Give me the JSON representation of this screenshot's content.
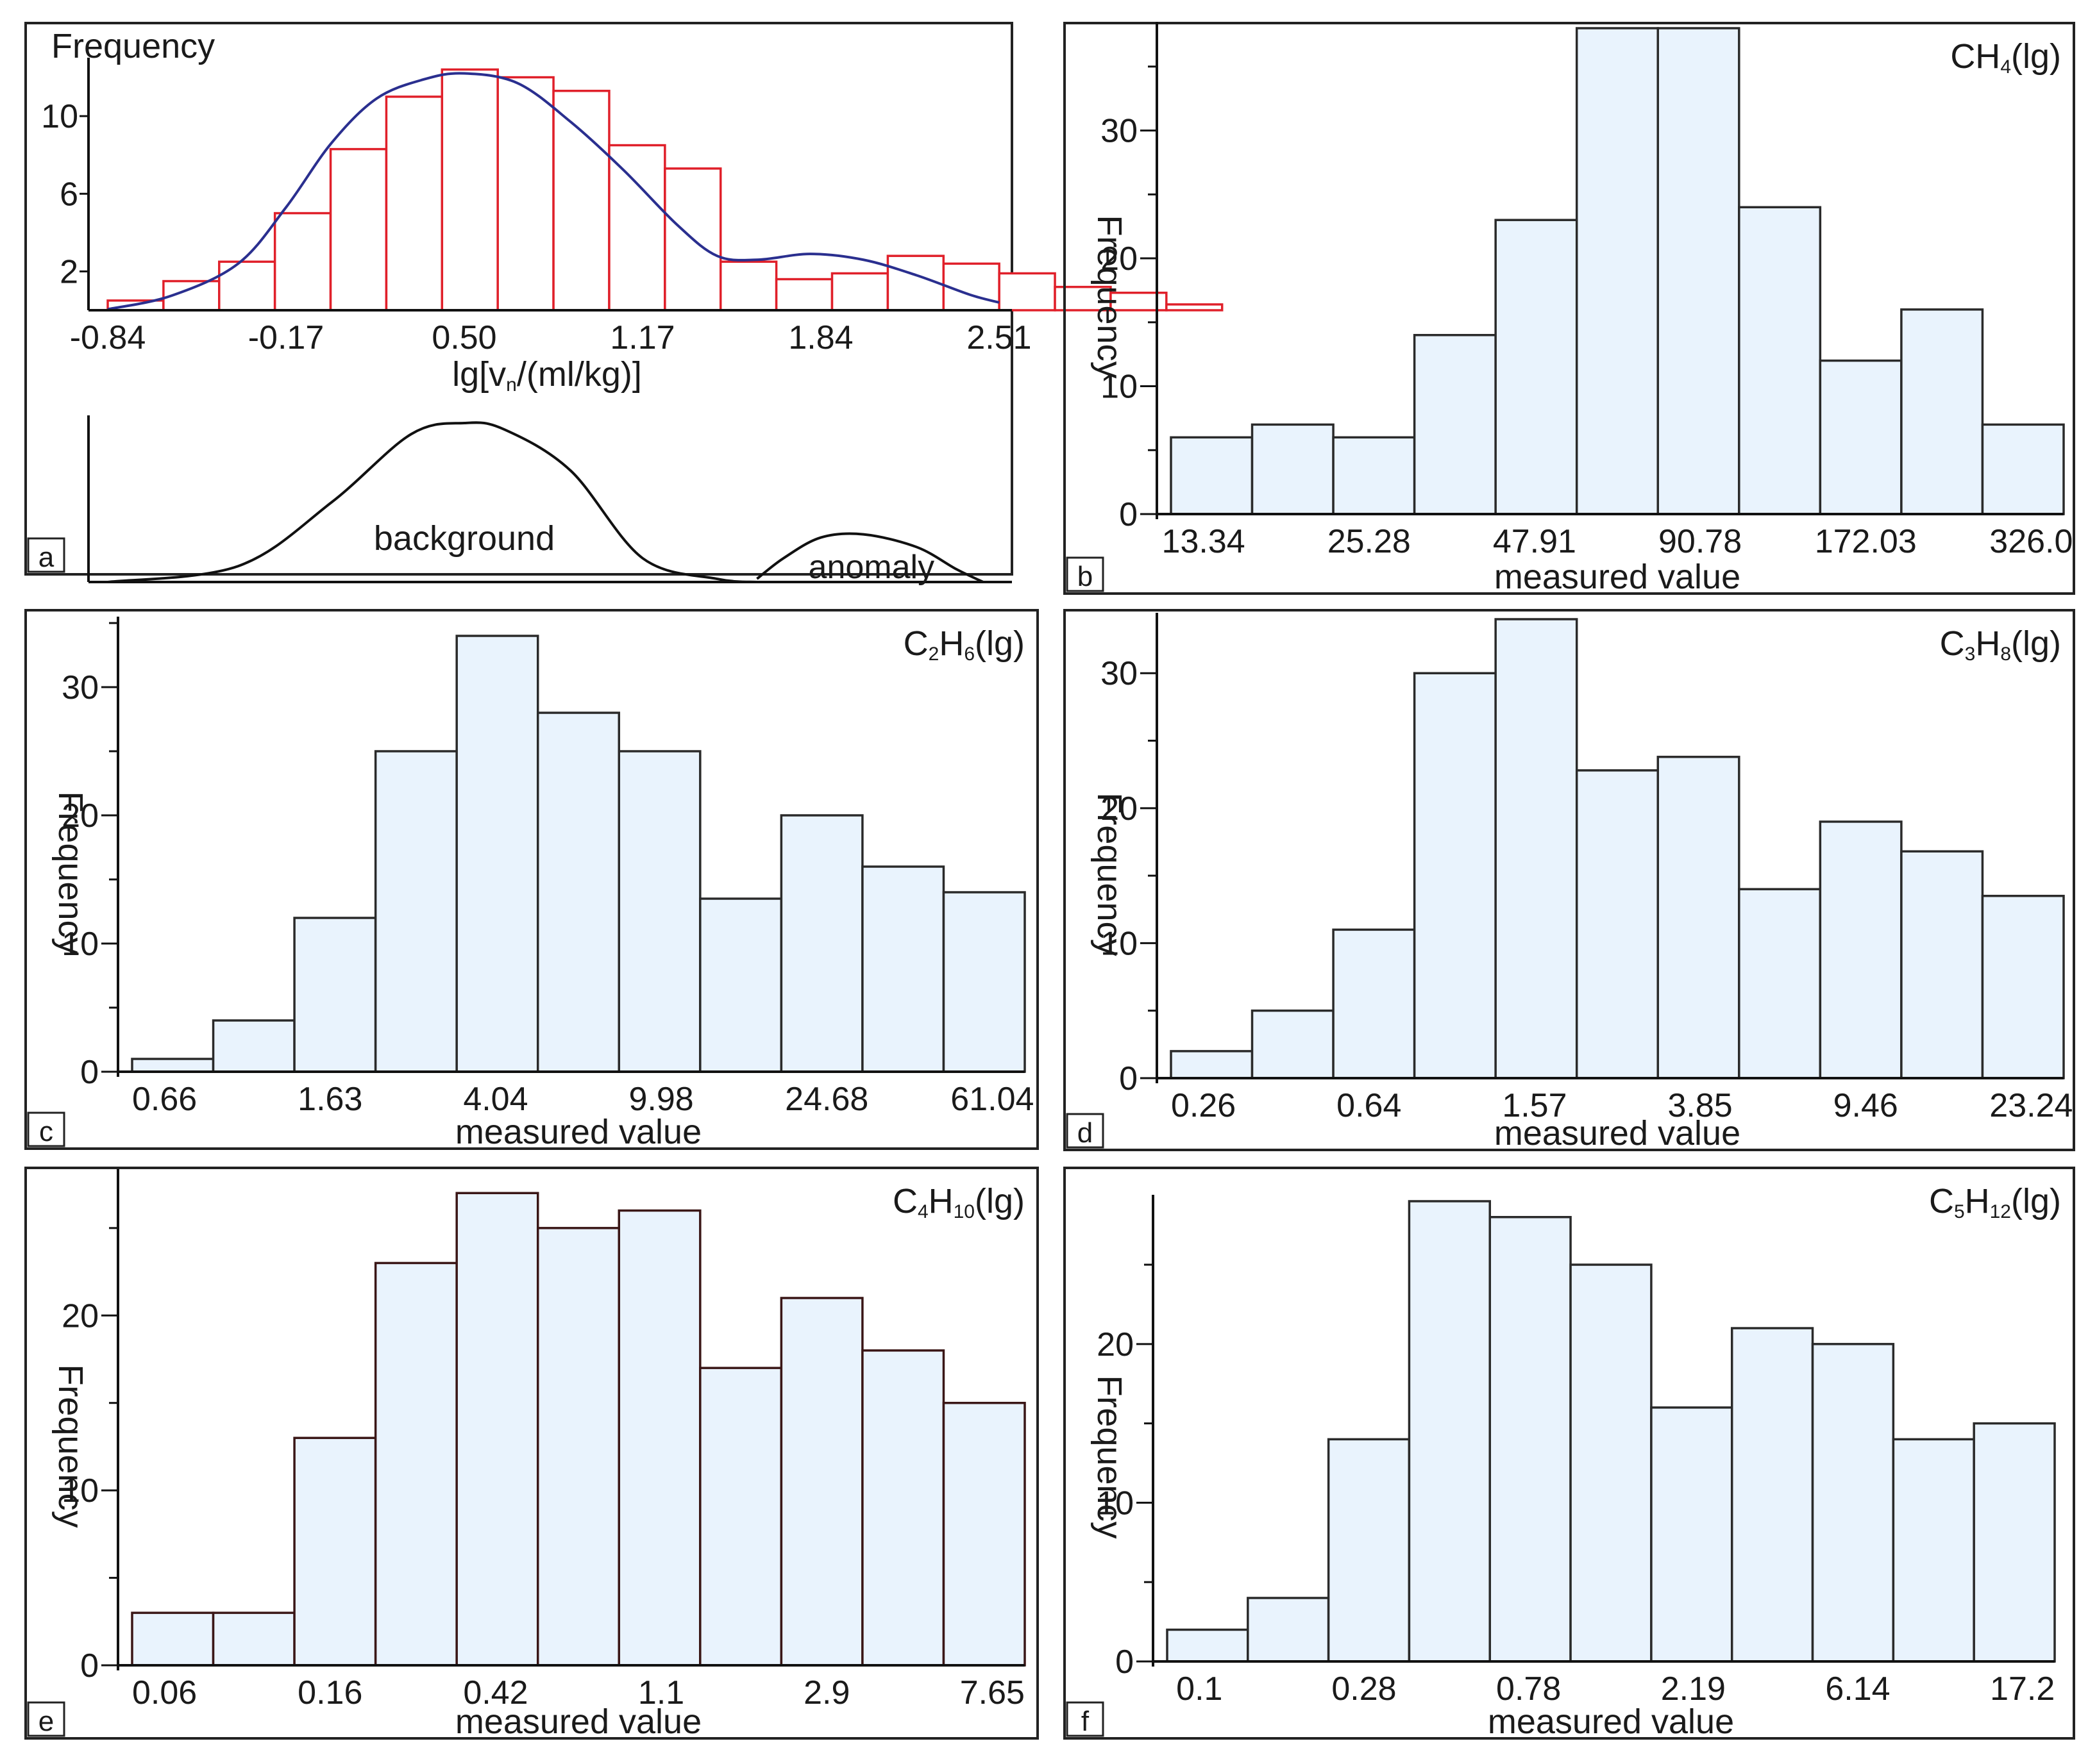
{
  "chart_data": [
    {
      "panel": "a",
      "type": "bar",
      "title": "",
      "ylabel": "Frequency",
      "xlabel": "lg[vₙ/(ml/kg)]",
      "xlabel_parts": {
        "pre": "lg[v",
        "sub": "n",
        "post": "/(ml/kg)]"
      },
      "x_ticks": [
        "-0.84",
        "-0.17",
        "0.50",
        "1.17",
        "1.84",
        "2.51"
      ],
      "x_range": [
        -0.84,
        2.51
      ],
      "y_ticks": [
        "2",
        "6",
        "10"
      ],
      "y_tick_values": [
        2,
        6,
        10
      ],
      "ylim": [
        0,
        14
      ],
      "bin_width": 0.2094,
      "values": [
        0.5,
        1.5,
        2.5,
        5,
        8.3,
        11,
        12.4,
        12,
        11.3,
        8.5,
        7.3,
        2.5,
        1.6,
        1.9,
        2.8,
        2.4,
        1.9,
        1.2,
        0.9,
        0.3
      ],
      "kde": [
        [
          -0.84,
          0.05
        ],
        [
          -0.6,
          0.75
        ],
        [
          -0.35,
          2.4
        ],
        [
          -0.17,
          5.3
        ],
        [
          0.0,
          8.6
        ],
        [
          0.17,
          10.9
        ],
        [
          0.35,
          11.9
        ],
        [
          0.5,
          12.2
        ],
        [
          0.7,
          11.7
        ],
        [
          0.9,
          9.7
        ],
        [
          1.1,
          7.2
        ],
        [
          1.3,
          4.4
        ],
        [
          1.45,
          2.8
        ],
        [
          1.6,
          2.6
        ],
        [
          1.8,
          2.9
        ],
        [
          2.0,
          2.6
        ],
        [
          2.2,
          1.8
        ],
        [
          2.4,
          0.8
        ],
        [
          2.51,
          0.4
        ]
      ],
      "density_curves": [
        {
          "name": "background",
          "points": [
            [
              -0.84,
              0
            ],
            [
              -0.35,
              0.1
            ],
            [
              0.0,
              0.5
            ],
            [
              0.3,
              0.93
            ],
            [
              0.5,
              1.0
            ],
            [
              0.65,
              0.96
            ],
            [
              0.9,
              0.7
            ],
            [
              1.17,
              0.15
            ],
            [
              1.45,
              0.02
            ],
            [
              1.6,
              0.0
            ]
          ]
        },
        {
          "name": "anomaly",
          "points": [
            [
              1.6,
              0.02
            ],
            [
              1.7,
              0.15
            ],
            [
              1.84,
              0.28
            ],
            [
              2.0,
              0.3
            ],
            [
              2.2,
              0.22
            ],
            [
              2.35,
              0.08
            ],
            [
              2.45,
              0.0
            ]
          ]
        }
      ],
      "annotations": [
        "background",
        "anomaly"
      ],
      "panel_label": "a"
    },
    {
      "panel": "b",
      "type": "bar",
      "title": "CH4(lg)",
      "title_parts": [
        {
          "t": "CH",
          "sub": "4"
        },
        {
          "t": "(lg)"
        }
      ],
      "ylabel": "Frequency",
      "xlabel": "measured value",
      "x_ticks": [
        "13.34",
        "25.28",
        "47.91",
        "90.78",
        "172.03",
        "326.0"
      ],
      "y_ticks": [
        "0",
        "10",
        "20",
        "30"
      ],
      "y_tick_values": [
        0,
        10,
        20,
        30
      ],
      "ylim": [
        0,
        38
      ],
      "values": [
        6,
        7,
        6,
        14,
        23,
        38,
        38,
        24,
        12,
        16,
        7
      ],
      "panel_label": "b"
    },
    {
      "panel": "c",
      "type": "bar",
      "title": "C2H6(lg)",
      "title_parts": [
        {
          "t": "C",
          "sub": "2"
        },
        {
          "t": "H",
          "sub": "6"
        },
        {
          "t": "(lg)"
        }
      ],
      "ylabel": "Frequency",
      "xlabel": "measured value",
      "x_ticks": [
        "0.66",
        "1.63",
        "4.04",
        "9.98",
        "24.68",
        "61.04"
      ],
      "y_ticks": [
        "0",
        "10",
        "20",
        "30"
      ],
      "y_tick_values": [
        0,
        10,
        20,
        30
      ],
      "ylim": [
        0,
        35
      ],
      "values": [
        1,
        4,
        12,
        25,
        34,
        28,
        25,
        13.5,
        20,
        16,
        14
      ],
      "panel_label": "c"
    },
    {
      "panel": "d",
      "type": "bar",
      "title": "C3H8(lg)",
      "title_parts": [
        {
          "t": "C",
          "sub": "3"
        },
        {
          "t": "H",
          "sub": "8"
        },
        {
          "t": "(lg)"
        }
      ],
      "ylabel": "Frequency",
      "xlabel": "measured value",
      "x_ticks": [
        "0.26",
        "0.64",
        "1.57",
        "3.85",
        "9.46",
        "23.24"
      ],
      "y_ticks": [
        "0",
        "10",
        "20",
        "30"
      ],
      "y_tick_values": [
        0,
        10,
        20,
        30
      ],
      "ylim": [
        0,
        34
      ],
      "values": [
        2,
        5,
        11,
        30,
        34,
        22.8,
        23.8,
        14,
        19,
        16.8,
        13.5
      ],
      "panel_label": "d"
    },
    {
      "panel": "e",
      "type": "bar",
      "title": "C4H10(lg)",
      "title_parts": [
        {
          "t": "C",
          "sub": "4"
        },
        {
          "t": "H",
          "sub": "10"
        },
        {
          "t": "(lg)"
        }
      ],
      "ylabel": "Frequency",
      "xlabel": "measured value",
      "x_ticks": [
        "0.06",
        "0.16",
        "0.42",
        "1.1",
        "2.9",
        "7.65"
      ],
      "y_ticks": [
        "0",
        "10",
        "20"
      ],
      "y_tick_values": [
        0,
        10,
        20
      ],
      "ylim": [
        0,
        28
      ],
      "values": [
        3,
        3,
        13,
        23,
        27,
        25,
        26,
        17,
        21,
        18,
        15
      ],
      "panel_label": "e"
    },
    {
      "panel": "f",
      "type": "bar",
      "title": "C5H12(lg)",
      "title_parts": [
        {
          "t": "C",
          "sub": "5"
        },
        {
          "t": "H",
          "sub": "12"
        },
        {
          "t": "(lg)"
        }
      ],
      "ylabel": "Frequency",
      "xlabel": "measured value",
      "x_ticks": [
        "0.1",
        "0.28",
        "0.78",
        "2.19",
        "6.14",
        "17.2"
      ],
      "y_ticks": [
        "0",
        "10",
        "20"
      ],
      "y_tick_values": [
        0,
        10,
        20
      ],
      "ylim": [
        0,
        29
      ],
      "values": [
        2,
        4,
        14,
        29,
        28,
        25,
        16,
        21,
        20,
        14,
        15
      ],
      "panel_label": "f"
    }
  ]
}
